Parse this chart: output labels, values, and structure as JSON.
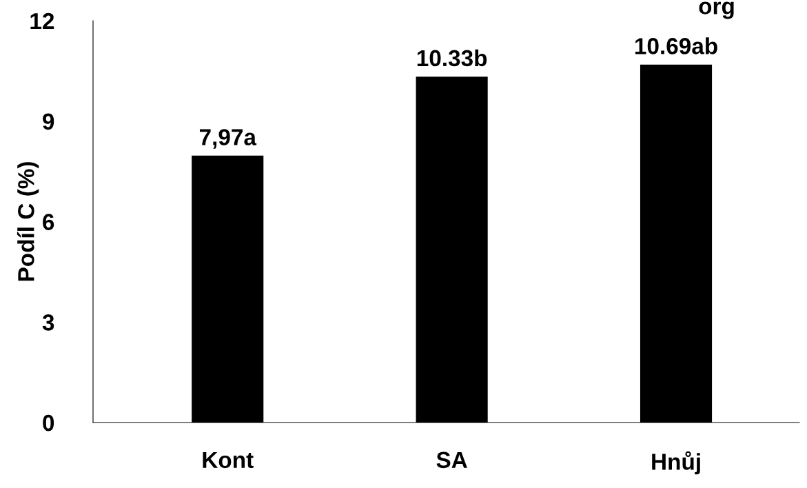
{
  "chart_data": {
    "type": "bar",
    "ylabel": "Podíl C (%)",
    "categories": [
      "Kont",
      "SA",
      "Hnůj"
    ],
    "values": [
      7.97,
      10.33,
      10.69
    ],
    "color": "#000000",
    "value_labels": [
      "7,97a",
      "10.33b",
      "10.69ab"
    ],
    "ylim": [
      0,
      12
    ],
    "yticks": [
      0,
      3,
      6,
      9,
      12
    ],
    "grid": false,
    "legend": false,
    "annotations": [
      "org"
    ]
  }
}
